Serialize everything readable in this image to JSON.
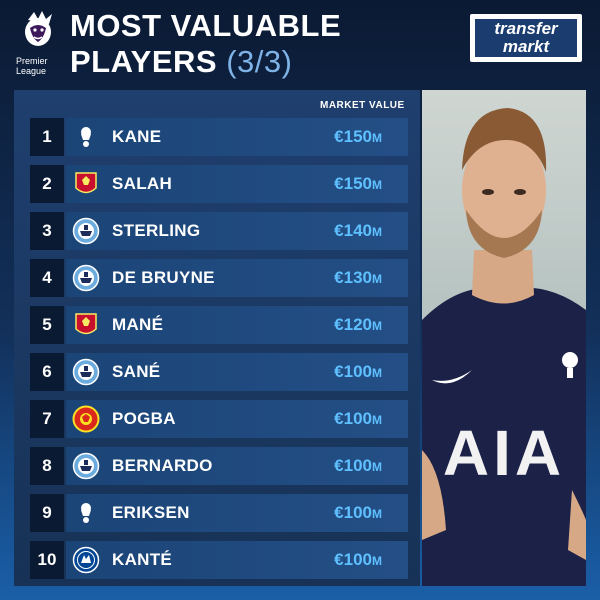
{
  "header": {
    "league_logo_text": [
      "Premier",
      "League"
    ],
    "title_line1": "MOST VALUABLE",
    "title_line2": "PLAYERS",
    "title_part": "(3/3)",
    "brand_line1": "transfer",
    "brand_line2": "markt"
  },
  "table": {
    "column_header": "MARKET VALUE",
    "rows": [
      {
        "rank": "1",
        "name": "KANE",
        "value": "€150",
        "unit": "M",
        "club_icon": "tottenham-crest-icon"
      },
      {
        "rank": "2",
        "name": "SALAH",
        "value": "€150",
        "unit": "M",
        "club_icon": "liverpool-crest-icon"
      },
      {
        "rank": "3",
        "name": "STERLING",
        "value": "€140",
        "unit": "M",
        "club_icon": "man-city-crest-icon"
      },
      {
        "rank": "4",
        "name": "DE BRUYNE",
        "value": "€130",
        "unit": "M",
        "club_icon": "man-city-crest-icon"
      },
      {
        "rank": "5",
        "name": "MANÉ",
        "value": "€120",
        "unit": "M",
        "club_icon": "liverpool-crest-icon"
      },
      {
        "rank": "6",
        "name": "SANÉ",
        "value": "€100",
        "unit": "M",
        "club_icon": "man-city-crest-icon"
      },
      {
        "rank": "7",
        "name": "POGBA",
        "value": "€100",
        "unit": "M",
        "club_icon": "man-united-crest-icon"
      },
      {
        "rank": "8",
        "name": "BERNARDO",
        "value": "€100",
        "unit": "M",
        "club_icon": "man-city-crest-icon"
      },
      {
        "rank": "9",
        "name": "ERIKSEN",
        "value": "€100",
        "unit": "M",
        "club_icon": "tottenham-crest-icon"
      },
      {
        "rank": "10",
        "name": "KANTÉ",
        "value": "€100",
        "unit": "M",
        "club_icon": "chelsea-crest-icon"
      }
    ]
  },
  "photo": {
    "shirt_text": "AIA"
  },
  "colors": {
    "accent_value": "#5fc0ff",
    "rank_bg": "#0b1a33",
    "bar": "#244f86"
  }
}
